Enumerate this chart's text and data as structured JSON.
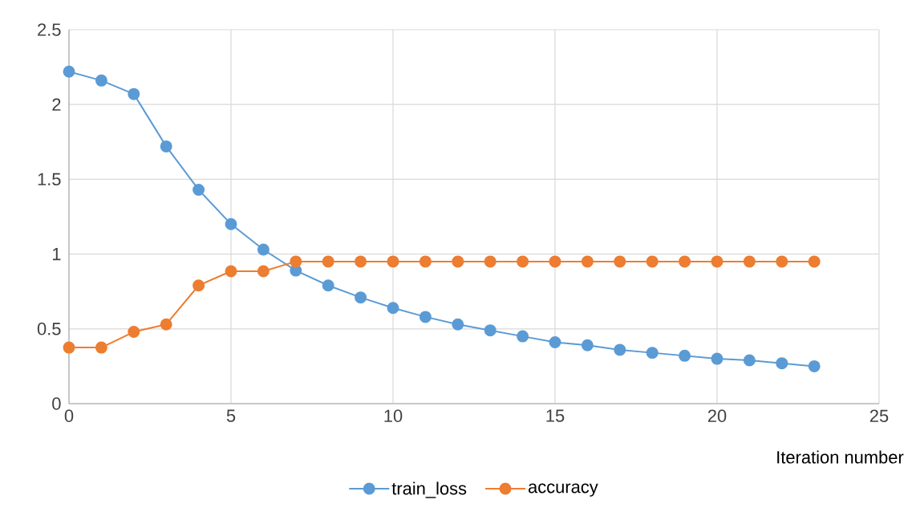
{
  "chart_data": {
    "type": "line",
    "xlabel": "Iteration number",
    "x": [
      0,
      1,
      2,
      3,
      4,
      5,
      6,
      7,
      8,
      9,
      10,
      11,
      12,
      13,
      14,
      15,
      16,
      17,
      18,
      19,
      20,
      21,
      22,
      23
    ],
    "series": [
      {
        "name": "train_loss",
        "color": "#5b9bd5",
        "values": [
          2.22,
          2.16,
          2.07,
          1.72,
          1.43,
          1.2,
          1.03,
          0.89,
          0.79,
          0.71,
          0.64,
          0.58,
          0.53,
          0.49,
          0.45,
          0.41,
          0.39,
          0.36,
          0.34,
          0.32,
          0.3,
          0.29,
          0.27,
          0.25
        ]
      },
      {
        "name": "accuracy",
        "color": "#ed7d31",
        "values": [
          0.375,
          0.375,
          0.48,
          0.53,
          0.79,
          0.885,
          0.885,
          0.95,
          0.95,
          0.95,
          0.95,
          0.95,
          0.95,
          0.95,
          0.95,
          0.95,
          0.95,
          0.95,
          0.95,
          0.95,
          0.95,
          0.95,
          0.95,
          0.95
        ]
      }
    ],
    "xlim": [
      0,
      25
    ],
    "xticks": [
      0,
      5,
      10,
      15,
      20,
      25
    ],
    "ylim": [
      0,
      2.5
    ],
    "yticks": [
      0,
      0.5,
      1,
      1.5,
      2,
      2.5
    ],
    "grid": true,
    "legend": "bottom",
    "marker": "circle",
    "line_style": "solid"
  }
}
